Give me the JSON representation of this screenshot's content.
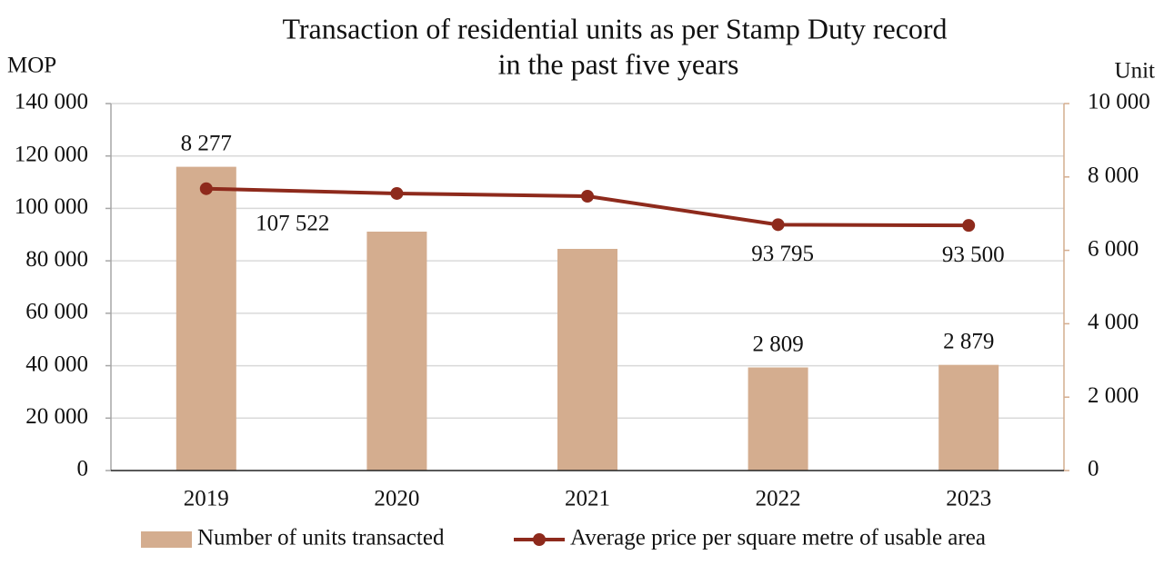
{
  "chart_data": {
    "type": "bar_line",
    "title": [
      "Transaction of residential units as per Stamp Duty record",
      "in the past five years"
    ],
    "y_label": "MOP",
    "y2_label": "Unit",
    "categories": [
      "2019",
      "2020",
      "2021",
      "2022",
      "2023"
    ],
    "series": [
      {
        "name": "Number of units transacted",
        "type": "bar",
        "axis": "y2",
        "color": "#d4ad8f",
        "label_color": "#c99466",
        "values": [
          8277,
          6510,
          6040,
          2809,
          2879
        ],
        "value_labels": [
          "8 277",
          null,
          null,
          "2 809",
          "2 879"
        ]
      },
      {
        "name": "Average price per square metre of usable area",
        "type": "line",
        "axis": "y",
        "color": "#8e2a1c",
        "label_color": "#8e2a1c",
        "values": [
          107522,
          105700,
          104650,
          93795,
          93500
        ],
        "value_labels": [
          "107 522",
          null,
          null,
          "93 795",
          "93 500"
        ]
      }
    ],
    "ylim": [
      0,
      140000
    ],
    "yticks": [
      0,
      {
        "value": 20000,
        "label": "20 000"
      },
      {
        "value": 40000,
        "label": "40 000"
      },
      {
        "value": 60000,
        "label": "60 000"
      },
      {
        "value": 80000,
        "label": "80 000"
      },
      {
        "value": 100000,
        "label": "100 000"
      },
      {
        "value": 120000,
        "label": "120 000"
      },
      {
        "value": 140000,
        "label": "140 000"
      }
    ],
    "y2lim": [
      0,
      10000
    ],
    "y2ticks": [
      0,
      {
        "value": 2000,
        "label": "2 000"
      },
      {
        "value": 4000,
        "label": "4 000"
      },
      {
        "value": 6000,
        "label": "6 000"
      },
      {
        "value": 8000,
        "label": "8 000"
      },
      {
        "value": 10000,
        "label": "10 000"
      }
    ],
    "grid": true,
    "legend": "bottom"
  }
}
